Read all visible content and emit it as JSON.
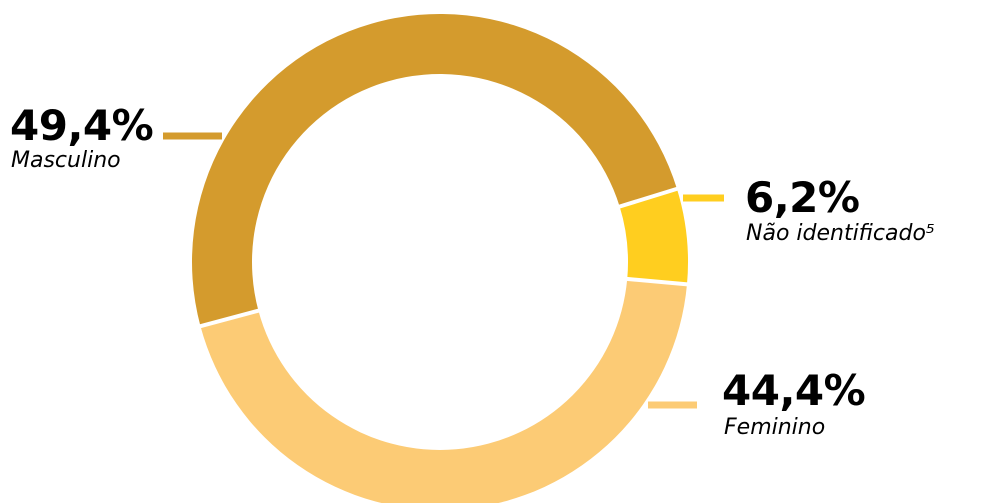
{
  "chart_data": {
    "type": "pie",
    "donut": true,
    "slices": [
      {
        "label": "Masculino",
        "value_text": "49,4%",
        "value": 49.4,
        "color": "#D49B2D"
      },
      {
        "label": "Não identificado⁵",
        "value_text": "6,2%",
        "value": 6.2,
        "color": "#FFCE1F"
      },
      {
        "label": "Feminino",
        "value_text": "44,4%",
        "value": 44.4,
        "color": "#FCCB75"
      }
    ],
    "separator_color": "#FFFFFF"
  }
}
